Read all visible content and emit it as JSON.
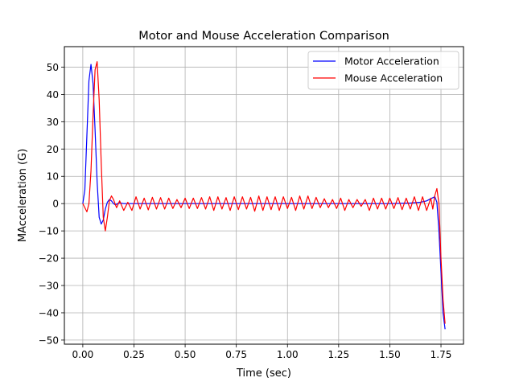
{
  "chart_data": {
    "type": "line",
    "title": "Motor and Mouse Acceleration Comparison",
    "xlabel": "Time (sec)",
    "ylabel": "MAcceleration (G)",
    "xlim": [
      -0.09,
      1.86
    ],
    "ylim": [
      -51.5,
      57.5
    ],
    "xticks": [
      0.0,
      0.25,
      0.5,
      0.75,
      1.0,
      1.25,
      1.5,
      1.75
    ],
    "xtick_labels": [
      "0.00",
      "0.25",
      "0.50",
      "0.75",
      "1.00",
      "1.25",
      "1.50",
      "1.75"
    ],
    "yticks": [
      -50,
      -40,
      -30,
      -20,
      -10,
      0,
      10,
      20,
      30,
      40,
      50
    ],
    "ytick_labels": [
      "−50",
      "−40",
      "−30",
      "−20",
      "−10",
      "0",
      "10",
      "20",
      "30",
      "40",
      "50"
    ],
    "grid": true,
    "legend_position": "top-right",
    "series": [
      {
        "name": "Motor Acceleration",
        "color": "#0000ff",
        "x": [
          0.0,
          0.01,
          0.02,
          0.03,
          0.04,
          0.05,
          0.06,
          0.07,
          0.08,
          0.09,
          0.1,
          0.11,
          0.12,
          0.13,
          0.14,
          0.15,
          0.16,
          0.17,
          0.18,
          0.2,
          0.25,
          0.5,
          0.75,
          1.0,
          1.25,
          1.5,
          1.6,
          1.65,
          1.68,
          1.7,
          1.72,
          1.73,
          1.74,
          1.75,
          1.76,
          1.77
        ],
        "y": [
          0.0,
          5.0,
          25.0,
          45.0,
          51.0,
          44.0,
          27.0,
          8.0,
          -5.0,
          -7.5,
          -6.0,
          -2.0,
          0.5,
          1.5,
          1.0,
          0.0,
          -0.5,
          0.0,
          0.3,
          0.0,
          0.0,
          0.0,
          0.0,
          0.0,
          0.0,
          0.0,
          0.2,
          0.5,
          1.0,
          1.8,
          2.5,
          0.5,
          -10.0,
          -25.0,
          -40.0,
          -46.0
        ]
      },
      {
        "name": "Mouse Acceleration",
        "color": "#ff0000",
        "x": [
          0.0,
          0.01,
          0.02,
          0.03,
          0.04,
          0.05,
          0.06,
          0.07,
          0.08,
          0.09,
          0.1,
          0.11,
          0.12,
          0.13,
          0.14,
          0.15,
          0.165,
          0.18,
          0.2,
          0.22,
          0.24,
          0.26,
          0.28,
          0.3,
          0.32,
          0.34,
          0.36,
          0.38,
          0.4,
          0.42,
          0.44,
          0.46,
          0.48,
          0.5,
          0.52,
          0.54,
          0.56,
          0.58,
          0.6,
          0.62,
          0.64,
          0.66,
          0.68,
          0.7,
          0.72,
          0.74,
          0.76,
          0.78,
          0.8,
          0.82,
          0.84,
          0.86,
          0.88,
          0.9,
          0.92,
          0.94,
          0.96,
          0.98,
          1.0,
          1.02,
          1.04,
          1.06,
          1.08,
          1.1,
          1.12,
          1.14,
          1.16,
          1.18,
          1.2,
          1.22,
          1.24,
          1.26,
          1.28,
          1.3,
          1.32,
          1.34,
          1.36,
          1.38,
          1.4,
          1.42,
          1.44,
          1.46,
          1.48,
          1.5,
          1.52,
          1.54,
          1.56,
          1.58,
          1.6,
          1.62,
          1.64,
          1.66,
          1.68,
          1.7,
          1.71,
          1.72,
          1.73,
          1.74,
          1.75,
          1.76,
          1.77
        ],
        "y": [
          0.0,
          -1.5,
          -3.0,
          0.0,
          12.0,
          32.0,
          49.0,
          52.0,
          38.0,
          15.0,
          -5.0,
          -10.0,
          -5.0,
          1.0,
          2.8,
          1.5,
          -1.5,
          1.0,
          -2.5,
          0.5,
          -2.5,
          2.5,
          -2.0,
          2.0,
          -2.3,
          2.3,
          -2.0,
          2.2,
          -2.0,
          2.0,
          -1.8,
          1.5,
          -1.5,
          2.0,
          -1.8,
          2.0,
          -1.8,
          2.2,
          -2.0,
          2.5,
          -2.5,
          2.5,
          -2.0,
          2.2,
          -2.5,
          2.5,
          -2.2,
          2.5,
          -2.0,
          2.3,
          -2.8,
          2.8,
          -2.5,
          2.5,
          -2.2,
          2.5,
          -2.5,
          2.5,
          -1.8,
          2.3,
          -2.5,
          2.8,
          -2.0,
          2.8,
          -1.8,
          2.3,
          -1.5,
          1.8,
          -1.5,
          1.5,
          -1.8,
          2.0,
          -2.5,
          1.5,
          -1.5,
          1.5,
          -1.0,
          1.5,
          -2.5,
          2.0,
          -2.0,
          2.0,
          -2.0,
          2.0,
          -1.8,
          2.2,
          -2.2,
          2.0,
          -2.0,
          2.5,
          -2.5,
          2.5,
          -2.5,
          2.0,
          -2.0,
          3.0,
          5.5,
          0.0,
          -20.0,
          -35.0,
          -44.0
        ]
      }
    ]
  }
}
